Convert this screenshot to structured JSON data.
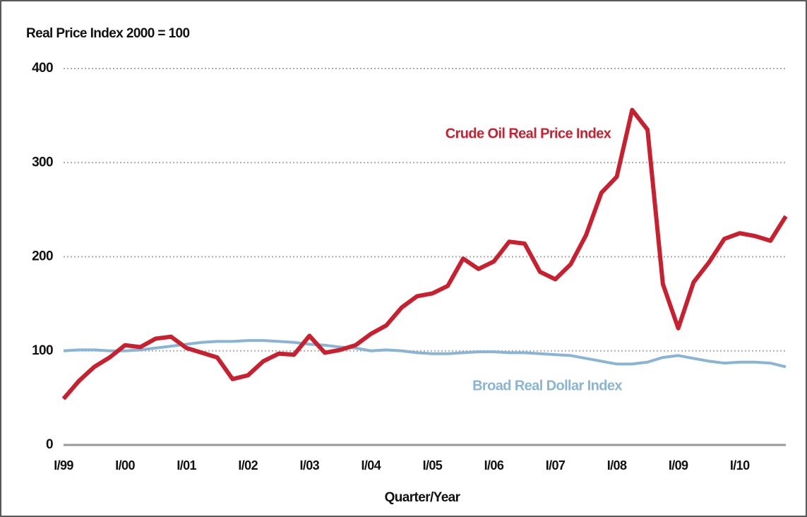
{
  "chart_data": {
    "type": "line",
    "title": "Real Price Index 2000 = 100",
    "x_label": "Quarter/Year",
    "categories": [
      "I/99",
      null,
      null,
      null,
      "I/00",
      null,
      null,
      null,
      "I/01",
      null,
      null,
      null,
      "I/02",
      null,
      null,
      null,
      "I/03",
      null,
      null,
      null,
      "I/04",
      null,
      null,
      null,
      "I/05",
      null,
      null,
      null,
      "I/06",
      null,
      null,
      null,
      "I/07",
      null,
      null,
      null,
      "I/08",
      null,
      null,
      null,
      "I/09",
      null,
      null,
      null,
      "I/10",
      null,
      null,
      null
    ],
    "series": [
      {
        "name": "Crude Oil Real Price Index",
        "color": "#c8202f",
        "values": [
          49,
          68,
          83,
          93,
          106,
          104,
          113,
          115,
          103,
          98,
          93,
          70,
          74,
          89,
          97,
          96,
          116,
          98,
          101,
          106,
          118,
          127,
          146,
          158,
          161,
          169,
          198,
          187,
          195,
          216,
          214,
          184,
          176,
          192,
          223,
          268,
          285,
          356,
          335,
          171,
          124,
          173,
          194,
          219,
          225,
          222,
          217,
          243
        ]
      },
      {
        "name": "Broad Real Dollar Index",
        "color": "#8ab4d4",
        "values": [
          100,
          101,
          101,
          100,
          100,
          101,
          103,
          105,
          107,
          109,
          110,
          110,
          111,
          111,
          110,
          109,
          107,
          106,
          104,
          103,
          100,
          101,
          100,
          98,
          97,
          97,
          98,
          99,
          99,
          98,
          98,
          97,
          96,
          95,
          92,
          89,
          86,
          86,
          88,
          93,
          95,
          92,
          89,
          87,
          88,
          88,
          87,
          83
        ]
      }
    ],
    "ylim": [
      0,
      400
    ],
    "yticks": [
      0,
      100,
      200,
      300,
      400
    ],
    "grid": true
  }
}
